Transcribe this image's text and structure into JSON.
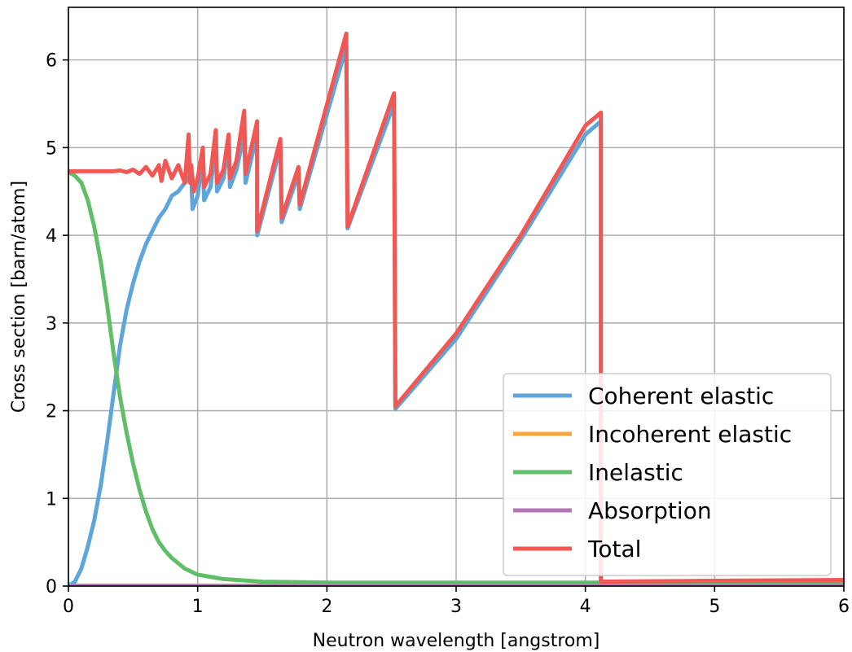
{
  "chart_data": {
    "type": "line",
    "title": "",
    "xlabel": "Neutron wavelength [angstrom]",
    "ylabel": "Cross section [barn/atom]",
    "xlim": [
      0,
      6
    ],
    "ylim": [
      0,
      6.6
    ],
    "xticks": [
      0,
      1,
      2,
      3,
      4,
      5,
      6
    ],
    "yticks": [
      0,
      1,
      2,
      3,
      4,
      5,
      6
    ],
    "xtick_labels": [
      "0",
      "1",
      "2",
      "3",
      "4",
      "5",
      "6"
    ],
    "ytick_labels": [
      "0",
      "1",
      "2",
      "3",
      "4",
      "5",
      "6"
    ],
    "grid": true,
    "legend": {
      "placement": "lower-right"
    },
    "series": [
      {
        "name": "Coherent elastic",
        "color": "#5DA5DA",
        "x": [
          0,
          0.05,
          0.1,
          0.15,
          0.2,
          0.25,
          0.3,
          0.35,
          0.4,
          0.45,
          0.5,
          0.55,
          0.6,
          0.65,
          0.7,
          0.75,
          0.8,
          0.85,
          0.9,
          0.95,
          0.96,
          1.0,
          1.04,
          1.05,
          1.1,
          1.14,
          1.15,
          1.2,
          1.24,
          1.25,
          1.3,
          1.36,
          1.37,
          1.46,
          1.46,
          1.64,
          1.65,
          1.78,
          1.79,
          2.15,
          2.16,
          2.52,
          2.53,
          3.0,
          3.5,
          4.0,
          4.12,
          4.12,
          5.0,
          6.0
        ],
        "y": [
          0.0,
          0.05,
          0.2,
          0.45,
          0.75,
          1.15,
          1.65,
          2.2,
          2.75,
          3.15,
          3.45,
          3.7,
          3.9,
          4.05,
          4.2,
          4.3,
          4.45,
          4.5,
          4.6,
          4.7,
          4.3,
          4.45,
          4.9,
          4.4,
          4.55,
          5.05,
          4.5,
          4.65,
          5.05,
          4.55,
          4.75,
          5.15,
          4.6,
          5.15,
          4.0,
          5.0,
          4.15,
          4.7,
          4.3,
          6.15,
          4.08,
          5.5,
          2.02,
          2.82,
          3.95,
          5.15,
          5.3,
          0.05,
          0.05,
          0.06
        ]
      },
      {
        "name": "Incoherent elastic",
        "color": "#FAA43A",
        "x": [
          0,
          6
        ],
        "y": [
          0.005,
          0.005
        ]
      },
      {
        "name": "Inelastic",
        "color": "#60BD68",
        "x": [
          0,
          0.05,
          0.1,
          0.15,
          0.2,
          0.25,
          0.3,
          0.35,
          0.4,
          0.45,
          0.5,
          0.55,
          0.6,
          0.65,
          0.7,
          0.75,
          0.8,
          0.9,
          1.0,
          1.2,
          1.5,
          2.0,
          3.0,
          4.0,
          5.0,
          6.0
        ],
        "y": [
          4.72,
          4.68,
          4.6,
          4.4,
          4.1,
          3.7,
          3.2,
          2.65,
          2.15,
          1.75,
          1.4,
          1.1,
          0.85,
          0.65,
          0.5,
          0.4,
          0.32,
          0.2,
          0.13,
          0.08,
          0.05,
          0.04,
          0.04,
          0.04,
          0.04,
          0.04
        ]
      },
      {
        "name": "Absorption",
        "color": "#B276B2",
        "x": [
          0,
          6
        ],
        "y": [
          0.003,
          0.003
        ]
      },
      {
        "name": "Total",
        "color": "#F15854",
        "x": [
          0,
          0.2,
          0.35,
          0.4,
          0.45,
          0.5,
          0.55,
          0.6,
          0.65,
          0.7,
          0.72,
          0.75,
          0.8,
          0.85,
          0.9,
          0.93,
          0.94,
          0.95,
          0.97,
          1.0,
          1.04,
          1.05,
          1.1,
          1.14,
          1.15,
          1.2,
          1.24,
          1.25,
          1.3,
          1.36,
          1.37,
          1.46,
          1.46,
          1.64,
          1.65,
          1.78,
          1.79,
          2.15,
          2.16,
          2.52,
          2.53,
          3.0,
          3.5,
          4.0,
          4.12,
          4.12,
          5.0,
          6.0
        ],
        "y": [
          4.73,
          4.73,
          4.73,
          4.74,
          4.72,
          4.75,
          4.7,
          4.78,
          4.68,
          4.8,
          4.62,
          4.85,
          4.65,
          4.8,
          4.6,
          5.15,
          4.6,
          4.8,
          4.5,
          4.65,
          5.0,
          4.55,
          4.7,
          5.2,
          4.6,
          4.75,
          5.15,
          4.65,
          4.85,
          5.42,
          4.7,
          5.3,
          4.05,
          5.1,
          4.2,
          4.78,
          4.35,
          6.3,
          4.1,
          5.62,
          2.05,
          2.88,
          4.0,
          5.25,
          5.4,
          0.05,
          0.06,
          0.07
        ]
      }
    ]
  }
}
